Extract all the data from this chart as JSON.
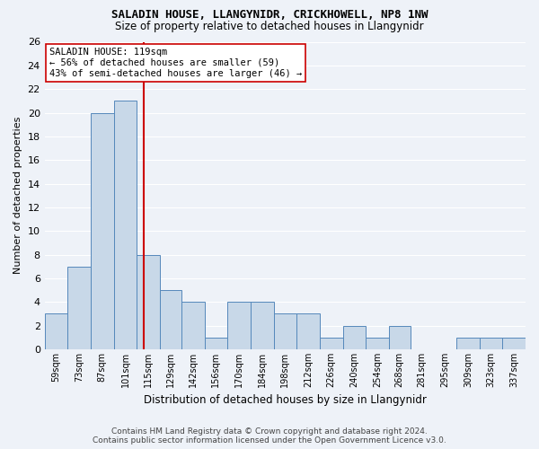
{
  "title": "SALADIN HOUSE, LLANGYNIDR, CRICKHOWELL, NP8 1NW",
  "subtitle": "Size of property relative to detached houses in Llangynidr",
  "xlabel": "Distribution of detached houses by size in Llangynidr",
  "ylabel": "Number of detached properties",
  "bin_labels": [
    "59sqm",
    "73sqm",
    "87sqm",
    "101sqm",
    "115sqm",
    "129sqm",
    "142sqm",
    "156sqm",
    "170sqm",
    "184sqm",
    "198sqm",
    "212sqm",
    "226sqm",
    "240sqm",
    "254sqm",
    "268sqm",
    "281sqm",
    "295sqm",
    "309sqm",
    "323sqm",
    "337sqm"
  ],
  "bin_edges": [
    59,
    73,
    87,
    101,
    115,
    129,
    142,
    156,
    170,
    184,
    198,
    212,
    226,
    240,
    254,
    268,
    281,
    295,
    309,
    323,
    337,
    351
  ],
  "counts": [
    3,
    7,
    20,
    21,
    8,
    5,
    4,
    1,
    4,
    4,
    3,
    3,
    1,
    2,
    1,
    2,
    0,
    0,
    1,
    1,
    1
  ],
  "bar_color": "#c8d8e8",
  "bar_edge_color": "#5588bb",
  "property_size": 119,
  "property_line_color": "#cc0000",
  "annotation_text": "SALADIN HOUSE: 119sqm\n← 56% of detached houses are smaller (59)\n43% of semi-detached houses are larger (46) →",
  "annotation_box_color": "#ffffff",
  "annotation_box_edge_color": "#cc0000",
  "ylim": [
    0,
    26
  ],
  "yticks": [
    0,
    2,
    4,
    6,
    8,
    10,
    12,
    14,
    16,
    18,
    20,
    22,
    24,
    26
  ],
  "footer_line1": "Contains HM Land Registry data © Crown copyright and database right 2024.",
  "footer_line2": "Contains public sector information licensed under the Open Government Licence v3.0.",
  "background_color": "#eef2f8",
  "plot_bg_color": "#eef2f8"
}
